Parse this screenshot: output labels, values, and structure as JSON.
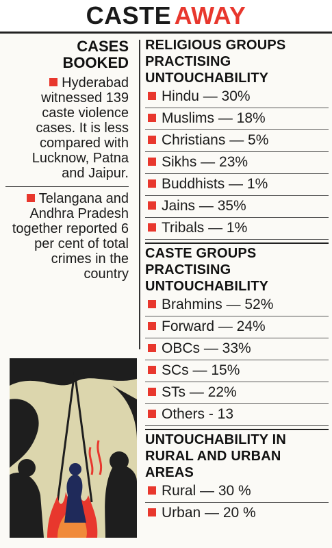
{
  "title": {
    "black": "CASTE",
    "red": "AWAY"
  },
  "left": {
    "heading_line1": "CASES",
    "heading_line2": "BOOKED",
    "notes": [
      "Hyderabad witnessed 139 caste violence cases. It is less compared with Lucknow, Patna and Jaipur.",
      "Telangana and Andhra Pradesh together reported 6 per cent of total crimes in the country"
    ]
  },
  "religious": {
    "heading": "RELIGIOUS GROUPS PRACTISING UNTOUCHABILITY",
    "items": [
      "Hindu — 30%",
      "Muslims — 18%",
      "Christians — 5%",
      "Sikhs — 23%",
      "Buddhists — 1%",
      "Jains — 35%",
      "Tribals — 1%"
    ]
  },
  "caste": {
    "heading": "CASTE GROUPS PRACTISING UNTOUCHABILITY",
    "items": [
      "Brahmins — 52%",
      "Forward — 24%",
      "OBCs — 33%",
      "SCs — 15%",
      "STs — 22%",
      "Others - 13"
    ]
  },
  "area": {
    "heading": "UNTOUCHABILITY IN RURAL AND URBAN AREAS",
    "items": [
      "Rural — 30 %",
      "Urban — 20 %"
    ]
  },
  "colors": {
    "accent": "#e8372d",
    "illustration_bg": "#dcd6ad",
    "fire": "#e8372d",
    "figure": "#1f2a5a"
  },
  "icons": [
    "bullet-square-icon",
    "illustration-figures"
  ]
}
